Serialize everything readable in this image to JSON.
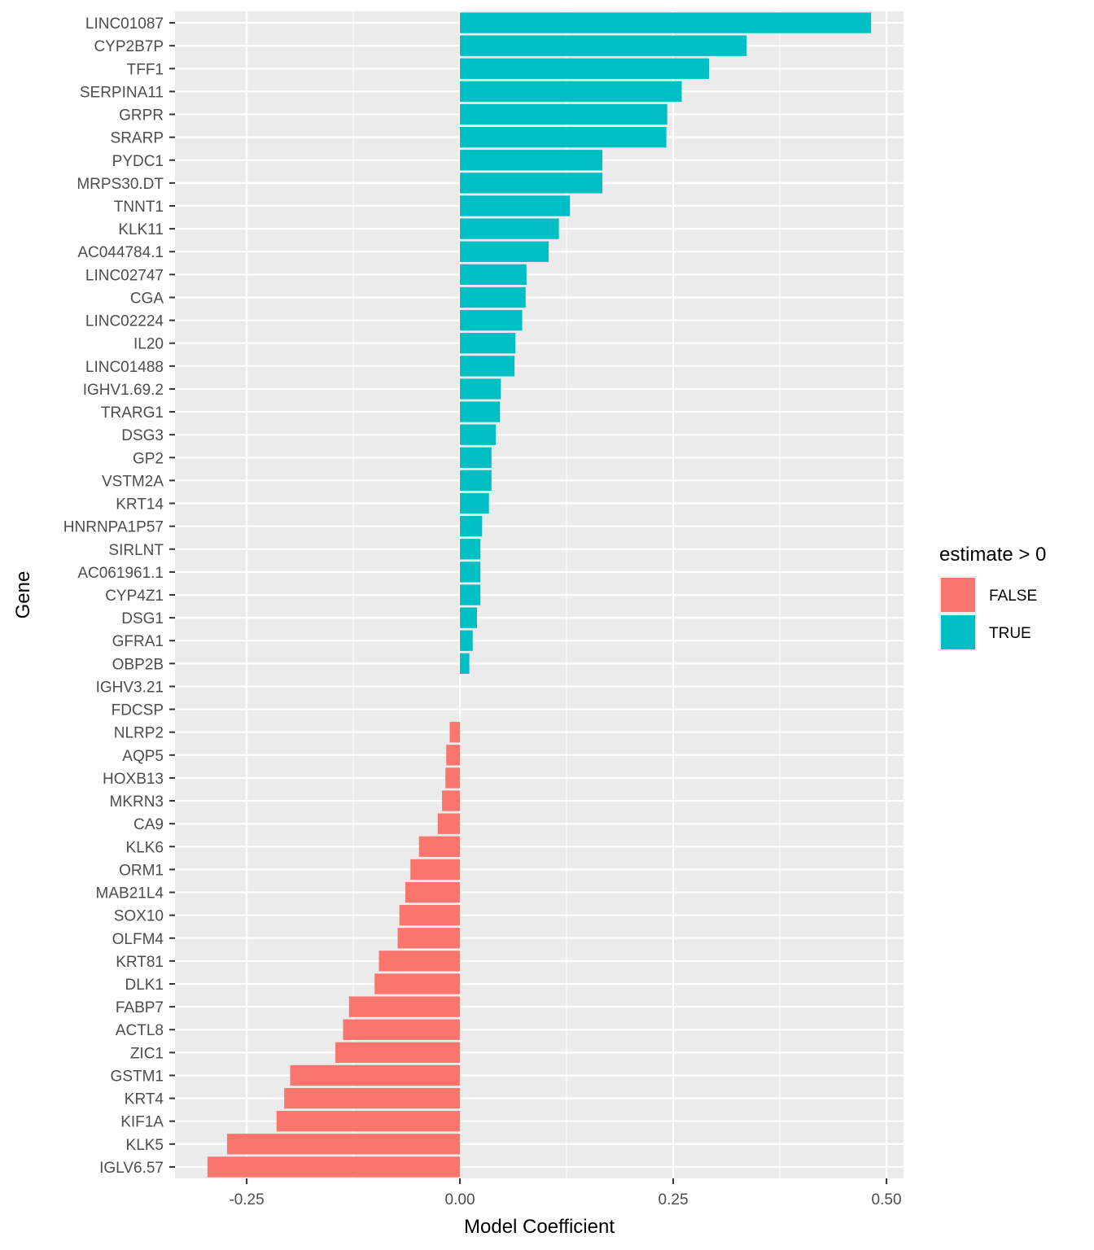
{
  "chart_data": {
    "type": "bar",
    "orientation": "horizontal",
    "title": "",
    "xlabel": "Model Coefficient",
    "ylabel": "Gene",
    "xlim": [
      -0.334,
      0.52
    ],
    "x_ticks": [
      -0.25,
      0.0,
      0.25,
      0.5
    ],
    "x_tick_labels": [
      "-0.25",
      "0.00",
      "0.25",
      "0.50"
    ],
    "grid": true,
    "legend": {
      "title": "estimate > 0",
      "position": "right",
      "entries": [
        {
          "label": "FALSE",
          "color": "#F8766D"
        },
        {
          "label": "TRUE",
          "color": "#00BFC4"
        }
      ]
    },
    "categories": [
      "LINC01087",
      "CYP2B7P",
      "TFF1",
      "SERPINA11",
      "GRPR",
      "SRARP",
      "PYDC1",
      "MRPS30.DT",
      "TNNT1",
      "KLK11",
      "AC044784.1",
      "LINC02747",
      "CGA",
      "LINC02224",
      "IL20",
      "LINC01488",
      "IGHV1.69.2",
      "TRARG1",
      "DSG3",
      "GP2",
      "VSTM2A",
      "KRT14",
      "HNRNPA1P57",
      "SIRLNT",
      "AC061961.1",
      "CYP4Z1",
      "DSG1",
      "GFRA1",
      "OBP2B",
      "IGHV3.21",
      "FDCSP",
      "NLRP2",
      "AQP5",
      "HOXB13",
      "MKRN3",
      "CA9",
      "KLK6",
      "ORM1",
      "MAB21L4",
      "SOX10",
      "OLFM4",
      "KRT81",
      "DLK1",
      "FABP7",
      "ACTL8",
      "ZIC1",
      "GSTM1",
      "KRT4",
      "KIF1A",
      "KLK5",
      "IGLV6.57"
    ],
    "values": [
      0.482,
      0.336,
      0.292,
      0.26,
      0.243,
      0.242,
      0.167,
      0.167,
      0.129,
      0.116,
      0.104,
      0.078,
      0.077,
      0.073,
      0.065,
      0.064,
      0.048,
      0.047,
      0.042,
      0.037,
      0.037,
      0.034,
      0.026,
      0.024,
      0.024,
      0.024,
      0.02,
      0.015,
      0.011,
      0.0,
      0.0,
      -0.012,
      -0.016,
      -0.017,
      -0.021,
      -0.026,
      -0.048,
      -0.058,
      -0.064,
      -0.071,
      -0.073,
      -0.095,
      -0.1,
      -0.13,
      -0.137,
      -0.146,
      -0.199,
      -0.206,
      -0.215,
      -0.273,
      -0.296
    ],
    "colors": {
      "positive": "#00BFC4",
      "negative": "#F8766D",
      "panel_bg": "#EBEBEB",
      "grid": "#FFFFFF"
    }
  }
}
